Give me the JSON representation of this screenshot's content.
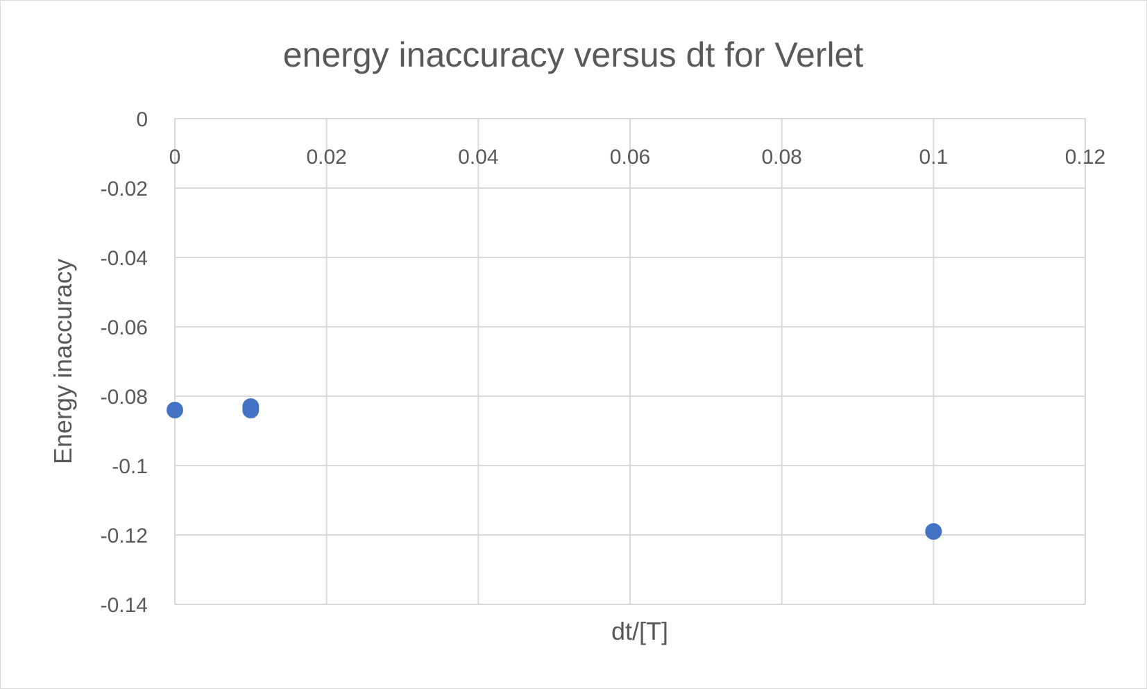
{
  "chart_data": {
    "type": "scatter",
    "title": "energy inaccuracy versus dt for Verlet",
    "xlabel": "dt/[T]",
    "ylabel": "Energy inaccuracy",
    "xlim": [
      0,
      0.12
    ],
    "ylim": [
      -0.14,
      0
    ],
    "x_ticks": [
      "0",
      "0.02",
      "0.04",
      "0.06",
      "0.08",
      "0.1",
      "0.12"
    ],
    "x_tick_values": [
      0,
      0.02,
      0.04,
      0.06,
      0.08,
      0.1,
      0.12
    ],
    "y_ticks": [
      "0",
      "-0.02",
      "-0.04",
      "-0.06",
      "-0.08",
      "-0.1",
      "-0.12",
      "-0.14"
    ],
    "y_tick_values": [
      0,
      -0.02,
      -0.04,
      -0.06,
      -0.08,
      -0.1,
      -0.12,
      -0.14
    ],
    "grid": true,
    "legend": "none",
    "series": [
      {
        "color": "#4472c4",
        "points": [
          {
            "x": 0.0,
            "y": -0.084
          },
          {
            "x": 0.01,
            "y": -0.083
          },
          {
            "x": 0.01,
            "y": -0.084
          },
          {
            "x": 0.1,
            "y": -0.119
          }
        ]
      }
    ]
  }
}
